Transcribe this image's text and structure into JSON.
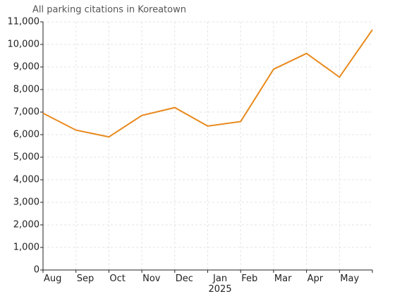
{
  "chart_data": {
    "type": "line",
    "title": "All parking citations in Koreatown",
    "categories": [
      "Aug",
      "Sep",
      "Oct",
      "Nov",
      "Dec",
      "Jan\n2025",
      "Feb",
      "Mar",
      "Apr",
      "May",
      null
    ],
    "series": [
      {
        "name": "Citations",
        "color": "#e8891c",
        "values": [
          6950,
          6200,
          5900,
          6850,
          7200,
          6380,
          6580,
          8900,
          9600,
          8550,
          10650
        ]
      }
    ],
    "ylim": [
      0,
      11000
    ],
    "yticks": [
      0,
      {
        "value": 1000,
        "label": "1,000"
      },
      {
        "value": 2000,
        "label": "2,000"
      },
      {
        "value": 3000,
        "label": "3,000"
      },
      {
        "value": 4000,
        "label": "4,000"
      },
      {
        "value": 5000,
        "label": "5,000"
      },
      {
        "value": 6000,
        "label": "6,000"
      },
      {
        "value": 7000,
        "label": "7,000"
      },
      {
        "value": 8000,
        "label": "8,000"
      },
      {
        "value": 9000,
        "label": "9,000"
      },
      {
        "value": 10000,
        "label": "10,000"
      },
      {
        "value": 11000,
        "label": "11,000"
      }
    ],
    "grid": true
  }
}
